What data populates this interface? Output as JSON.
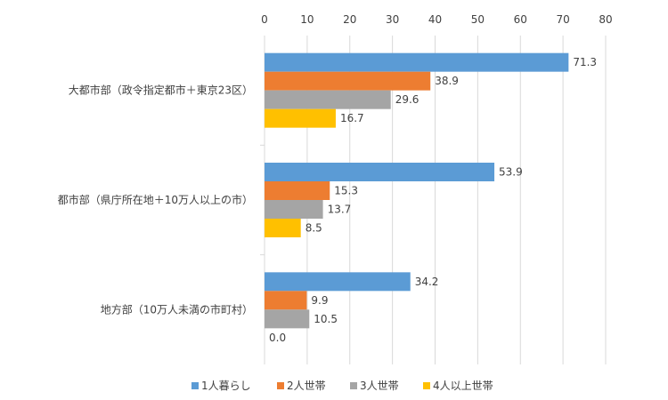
{
  "chart_data": {
    "type": "bar",
    "orientation": "horizontal",
    "categories": [
      "大都市部（政令指定都市＋東京23区）",
      "都市部（県庁所在地＋10万人以上の市）",
      "地方部（10万人未満の市町村）"
    ],
    "series": [
      {
        "name": "1人暮らし",
        "color": "#5B9BD5",
        "values": [
          71.3,
          53.9,
          34.2
        ]
      },
      {
        "name": "2人世帯",
        "color": "#ED7D31",
        "values": [
          38.9,
          15.3,
          9.9
        ]
      },
      {
        "name": "3人世帯",
        "color": "#A5A5A5",
        "values": [
          29.6,
          13.7,
          10.5
        ]
      },
      {
        "name": "4人以上世帯",
        "color": "#FFC000",
        "values": [
          16.7,
          8.5,
          0.0
        ]
      }
    ],
    "data_labels": [
      [
        "71.3",
        "53.9",
        "34.2"
      ],
      [
        "38.9",
        "15.3",
        "9.9"
      ],
      [
        "29.6",
        "13.7",
        "10.5"
      ],
      [
        "16.7",
        "8.5",
        "0.0"
      ]
    ],
    "x_ticks": [
      "0",
      "10",
      "20",
      "30",
      "40",
      "50",
      "60",
      "70",
      "80"
    ],
    "xlim": [
      0,
      80
    ],
    "grid": true,
    "legend_position": "bottom",
    "title": "",
    "xlabel": "",
    "ylabel": ""
  }
}
